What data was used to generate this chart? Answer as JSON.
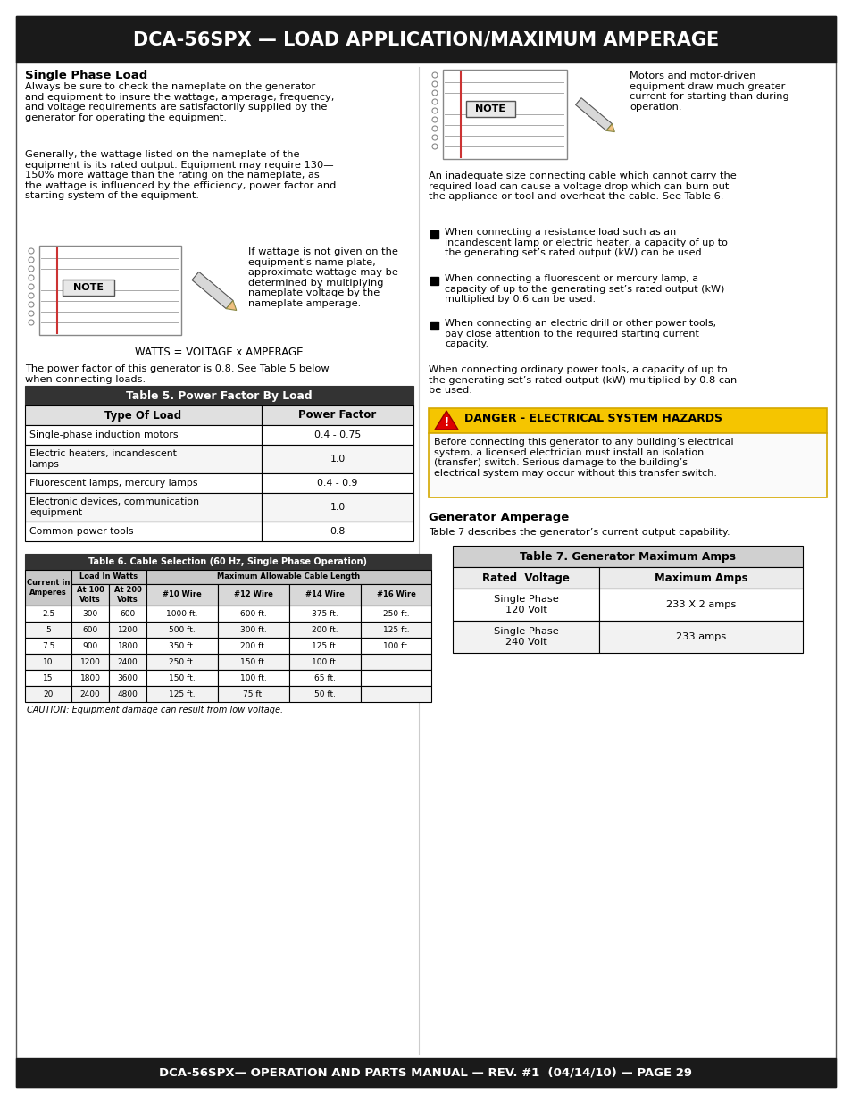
{
  "title": "DCA-56SPX — LOAD APPLICATION/MAXIMUM AMPERAGE",
  "footer": "DCA-56SPX— OPERATION AND PARTS MANUAL — REV. #1  (04/14/10) — PAGE 29",
  "header_bg": "#1a1a1a",
  "footer_bg": "#1a1a1a",
  "single_phase_heading": "Single Phase Load",
  "para1": "Always be sure to check the nameplate on the generator\nand equipment to insure the wattage, amperage, frequency,\nand voltage requirements are satisfactorily supplied by the\ngenerator for operating the equipment.",
  "para2": "Generally, the wattage listed on the nameplate of the\nequipment is its rated output. Equipment may require 130—\n150% more wattage than the rating on the nameplate, as\nthe wattage is influenced by the efficiency, power factor and\nstarting system of the equipment.",
  "note_text": "If wattage is not given on the\nequipment's name plate,\napproximate wattage may be\ndetermined by multiplying\nnameplate voltage by the\nnameplate amperage.",
  "watts_formula": "WATTS = VOLTAGE x AMPERAGE",
  "power_factor_text": "The power factor of this generator is 0.8. See Table 5 below\nwhen connecting loads.",
  "table5_title": "Table 5. Power Factor By Load",
  "table5_col1": "Type Of Load",
  "table5_col2": "Power Factor",
  "table5_rows": [
    [
      "Single-phase induction motors",
      "0.4 - 0.75"
    ],
    [
      "Electric heaters, incandescent\nlamps",
      "1.0"
    ],
    [
      "Fluorescent lamps, mercury lamps",
      "0.4 - 0.9"
    ],
    [
      "Electronic devices, communication\nequipment",
      "1.0"
    ],
    [
      "Common power tools",
      "0.8"
    ]
  ],
  "right_note_text": "Motors and motor-driven\nequipment draw much greater\ncurrent for starting than during\noperation.",
  "right_para1": "An inadequate size connecting cable which cannot carry the\nrequired load can cause a voltage drop which can burn out\nthe appliance or tool and overheat the cable. See Table 6.",
  "bullet1": "When connecting a resistance load such as an\nincandescent lamp or electric heater, a capacity of up to\nthe generating set’s rated output (kW) can be used.",
  "bullet2": "When connecting a fluorescent or mercury lamp, a\ncapacity of up to the generating set’s rated output (kW)\nmultiplied by 0.6 can be used.",
  "bullet3": "When connecting an electric drill or other power tools,\npay close attention to the required starting current\ncapacity.",
  "right_para2": "When connecting ordinary power tools, a capacity of up to\nthe generating set’s rated output (kW) multiplied by 0.8 can\nbe used.",
  "danger_title": "DANGER - ELECTRICAL SYSTEM HAZARDS",
  "danger_body": "Before connecting this generator to any building’s electrical\nsystem, a licensed electrician must install an isolation\n(transfer) switch. Serious damage to the building’s\nelectrical system may occur without this transfer switch.",
  "generator_amperage_heading": "Generator Amperage",
  "generator_amperage_text": "Table 7 describes the generator’s current output capability.",
  "table6_title": "Table 6. Cable Selection (60 Hz, Single Phase Operation)",
  "table6_rows": [
    [
      "2.5",
      "300",
      "600",
      "1000 ft.",
      "600 ft.",
      "375 ft.",
      "250 ft."
    ],
    [
      "5",
      "600",
      "1200",
      "500 ft.",
      "300 ft.",
      "200 ft.",
      "125 ft."
    ],
    [
      "7.5",
      "900",
      "1800",
      "350 ft.",
      "200 ft.",
      "125 ft.",
      "100 ft."
    ],
    [
      "10",
      "1200",
      "2400",
      "250 ft.",
      "150 ft.",
      "100 ft.",
      ""
    ],
    [
      "15",
      "1800",
      "3600",
      "150 ft.",
      "100 ft.",
      "65 ft.",
      ""
    ],
    [
      "20",
      "2400",
      "4800",
      "125 ft.",
      "75 ft.",
      "50 ft.",
      ""
    ]
  ],
  "table6_caution": "CAUTION: Equipment damage can result from low voltage.",
  "table7_title": "Table 7. Generator Maximum Amps",
  "table7_col1": "Rated  Voltage",
  "table7_col2": "Maximum Amps",
  "table7_rows": [
    [
      "Single Phase\n120 Volt",
      "233 X 2 amps"
    ],
    [
      "Single Phase\n240 Volt",
      "233 amps"
    ]
  ]
}
